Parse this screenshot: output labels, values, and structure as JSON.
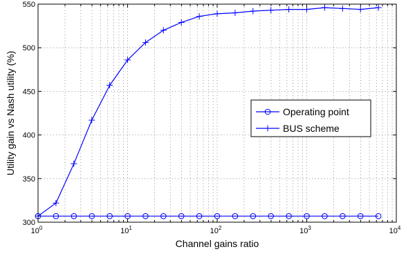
{
  "chart_data": {
    "type": "line",
    "xscale": "log",
    "xlabel": "Channel gains ratio",
    "ylabel": "Utility gain vs Nash utility (%)",
    "xlim": [
      1,
      10000
    ],
    "ylim": [
      300,
      550
    ],
    "xticks": [
      {
        "value": 1,
        "base": "10",
        "exp": "0"
      },
      {
        "value": 10,
        "base": "10",
        "exp": "1"
      },
      {
        "value": 100,
        "base": "10",
        "exp": "2"
      },
      {
        "value": 1000,
        "base": "10",
        "exp": "3"
      },
      {
        "value": 10000,
        "base": "10",
        "exp": "4"
      }
    ],
    "yticks": [
      300,
      350,
      400,
      450,
      500,
      550
    ],
    "grid": true,
    "legend_position": "center-right",
    "series": [
      {
        "name": "Operating point",
        "color": "#0000ff",
        "marker": "circle",
        "x": [
          1,
          1.585,
          2.512,
          3.981,
          6.31,
          10,
          15.85,
          25.12,
          39.81,
          63.1,
          100,
          158.5,
          251.2,
          398.1,
          631,
          1000,
          1585,
          2512,
          3981,
          6310
        ],
        "y": [
          307,
          307,
          307,
          307,
          307,
          307,
          307,
          307,
          307,
          307,
          307,
          307,
          307,
          307,
          307,
          307,
          307,
          307,
          307,
          307
        ]
      },
      {
        "name": "BUS scheme",
        "color": "#0000ff",
        "marker": "plus",
        "x": [
          1,
          1.585,
          2.512,
          3.981,
          6.31,
          10,
          15.85,
          25.12,
          39.81,
          63.1,
          100,
          158.5,
          251.2,
          398.1,
          631,
          1000,
          1585,
          2512,
          3981,
          6310
        ],
        "y": [
          307,
          322,
          367,
          417,
          457,
          486,
          506,
          520,
          529,
          536,
          539,
          540,
          542,
          543,
          544,
          544,
          546,
          545,
          544,
          546
        ]
      }
    ]
  }
}
